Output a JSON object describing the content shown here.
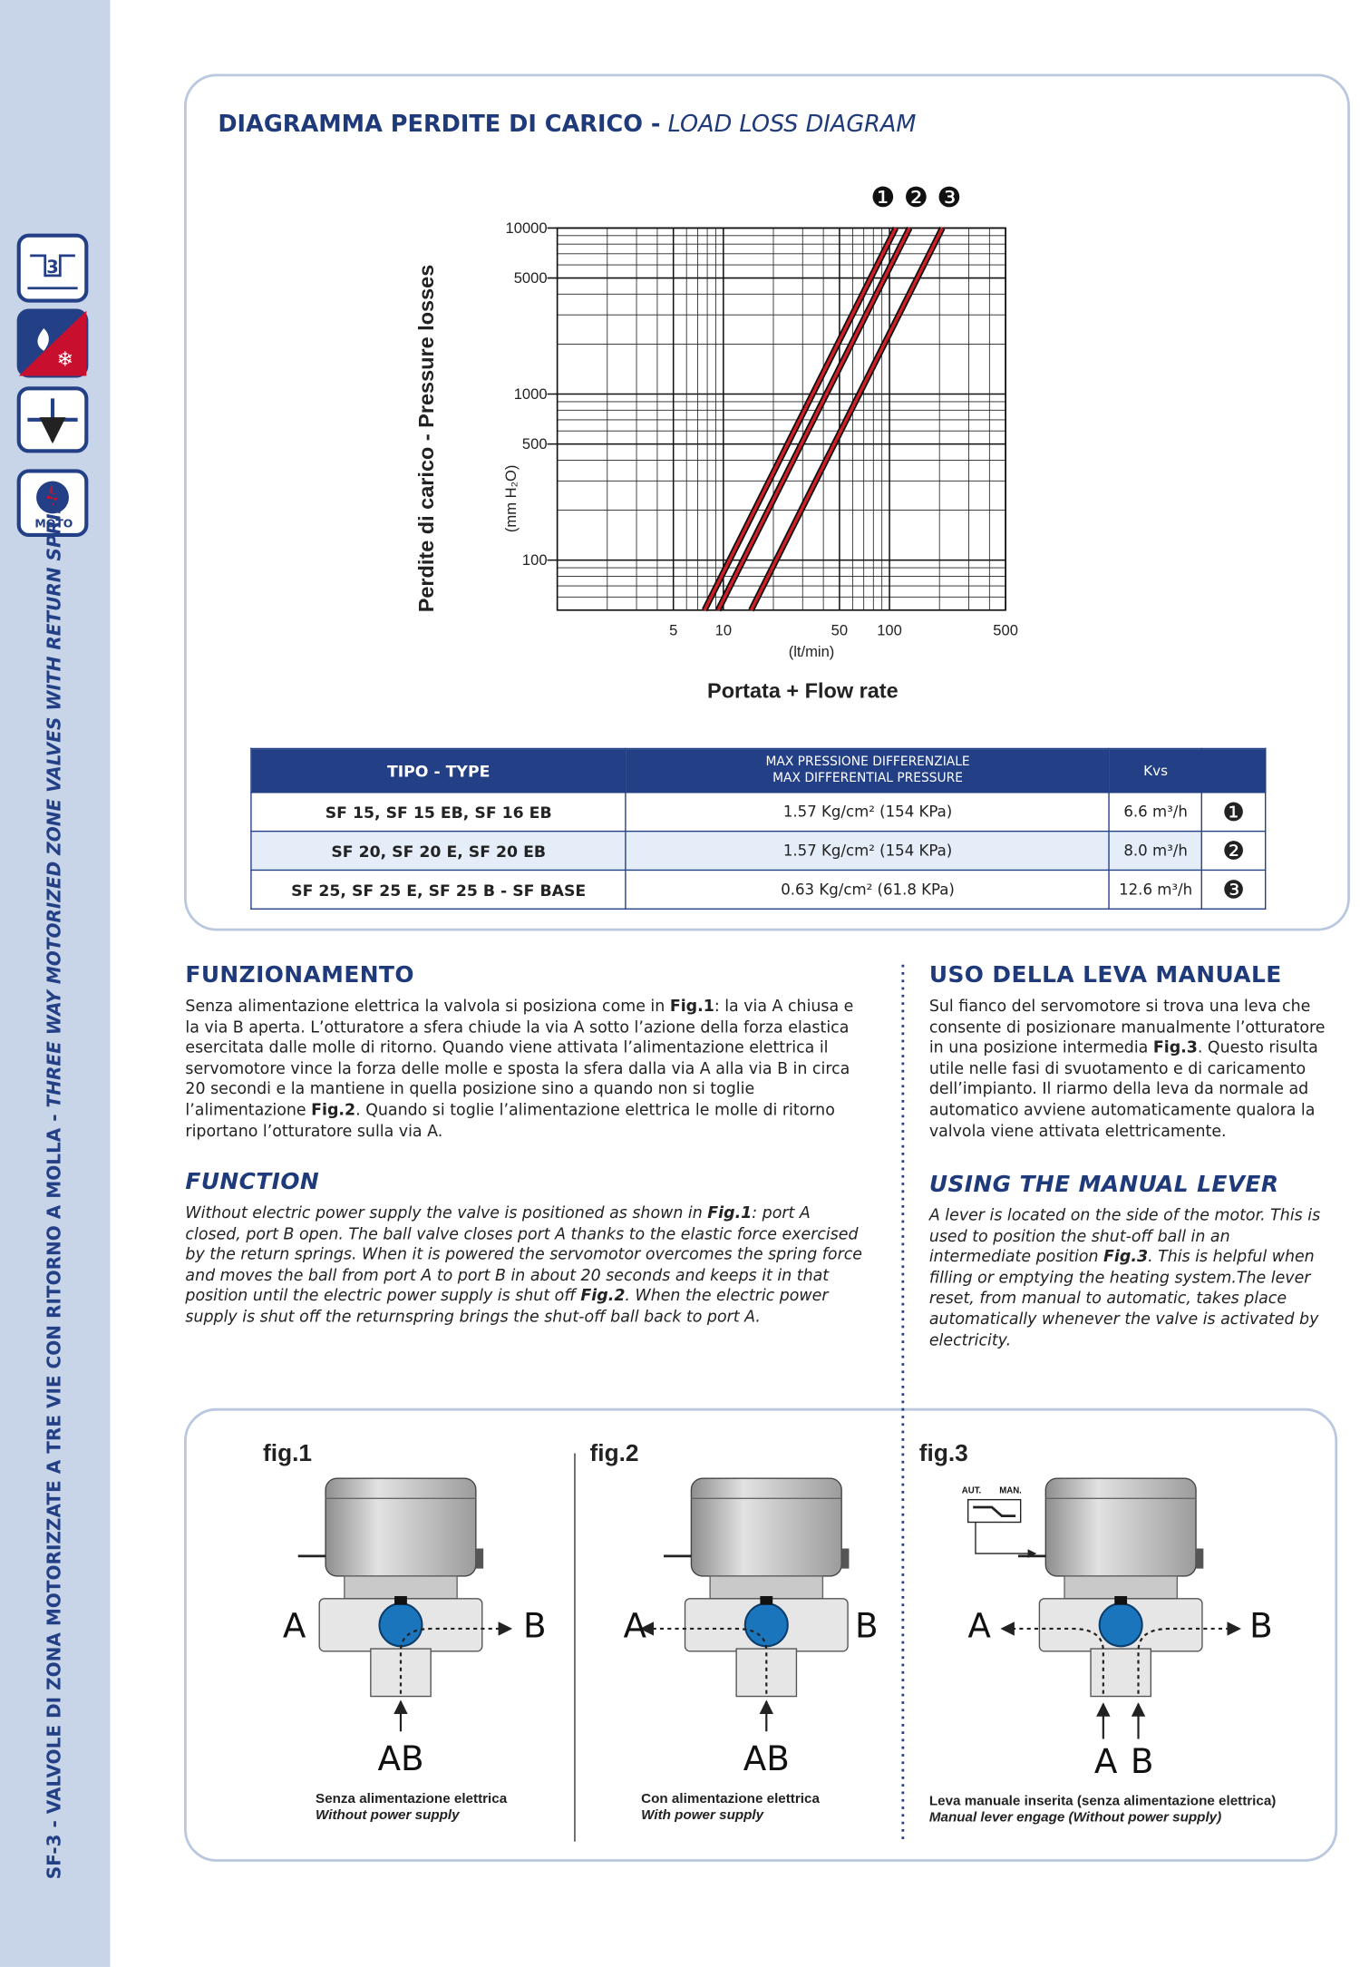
{
  "sidebar": {
    "text": "SF-3 - VALVOLE DI ZONA MOTORIZZATE A TRE VIE CON RITORNO A MOLLA -",
    "text_en": "THREE WAY MOTORIZED ZONE VALVES WITH RETURN SPRING",
    "icon_number": "3",
    "icon_label": "MOTO"
  },
  "diagram": {
    "title": "DIAGRAMMA PERDITE DI CARICO -",
    "title_en": "LOAD LOSS DIAGRAM"
  },
  "chart_data": {
    "type": "line",
    "y_label": "Perdite di carico - Pressure losses",
    "y_unit": "(mm H₂O)",
    "x_label": "Portata + Flow rate",
    "x_unit": "(lt/min)",
    "x_scale": "log",
    "y_scale": "log",
    "grid": true,
    "minor_grid": true,
    "xlim": [
      1,
      500
    ],
    "ylim": [
      50,
      10000
    ],
    "xticks": [
      5,
      10,
      50,
      100,
      500
    ],
    "yticks": [
      100,
      500,
      1000,
      5000,
      10000
    ],
    "series": [
      {
        "name": "❶",
        "color": "#d01f26",
        "x": [
          7.7,
          109
        ],
        "values": [
          50,
          10000
        ]
      },
      {
        "name": "❷",
        "color": "#d01f26",
        "x": [
          9.3,
          132
        ],
        "values": [
          50,
          10000
        ]
      },
      {
        "name": "❸",
        "color": "#d01f26",
        "x": [
          14.7,
          208
        ],
        "values": [
          50,
          10000
        ]
      }
    ]
  },
  "table": {
    "headers": [
      "TIPO - TYPE",
      "MAX PRESSIONE DIFFERENZIALE",
      "MAX DIFFERENTIAL PRESSURE",
      "Kvs"
    ],
    "rows": [
      [
        "SF 15, SF 15 EB, SF 16 EB",
        "1.57 Kg/cm² (154 KPa)",
        "6.6 m³/h",
        "❶"
      ],
      [
        "SF 20, SF 20 E, SF 20 EB",
        "1.57 Kg/cm² (154 KPa)",
        "8.0 m³/h",
        "❷"
      ],
      [
        "SF 25, SF 25 E, SF 25 B - SF BASE",
        "0.63 Kg/cm² (61.8 KPa)",
        "12.6 m³/h",
        "❸"
      ]
    ]
  },
  "sections": [
    {
      "title": "FUNZIONAMENTO",
      "body": [
        "Senza alimentazione elettrica la valvola si posiziona come in ",
        "Fig.1",
        ": la via A chiusa e la via B aperta. L’otturatore a sfera chiude la via A sotto l’azione della forza elastica esercitata dalle molle di ritorno. Quando viene attivata l’alimentazione elettrica il servomotore vince la forza delle molle e sposta la sfera dalla via A alla via B in circa 20 secondi e la mantiene in quella posizione sino a quando non si toglie l’alimentazione ",
        "Fig.2",
        ". Quando si toglie l’alimentazione elettrica le molle di ritorno riportano l’otturatore sulla via A."
      ]
    },
    {
      "title": "FUNCTION",
      "body": [
        "Without electric power supply the valve is positioned as shown in ",
        "Fig.1",
        ": port A closed, port B open. The ball valve closes port A thanks to the elastic force exercised by the return springs. When it is powered the servomotor overcomes the spring force and moves the ball from port A to port B in about 20 seconds and keeps it in that position until the electric power supply is shut off  ",
        "Fig.2",
        ". When the electric power supply is shut off the returnspring brings the shut-off ball back to port A."
      ]
    },
    {
      "title": "USO DELLA LEVA MANUALE",
      "body": [
        "Sul fianco del servomotore si trova una leva che consente di posizionare manualmente l’otturatore in una posizione intermedia ",
        "Fig.3",
        ". Questo risulta utile nelle fasi di svuotamento e di caricamento dell’impianto. Il riarmo della leva da normale ad automatico avviene automaticamente qualora la valvola viene attivata elettricamente."
      ]
    },
    {
      "title": "USING THE MANUAL LEVER",
      "body": [
        "A lever is located on the side of the motor. This is used to position the shut-off ball in an intermediate position ",
        "Fig.3",
        ". This is helpful when filling or emptying the heating system.The lever reset, from manual to automatic, takes place  automatically whenever the valve is activated by electricity."
      ]
    }
  ],
  "figures": [
    {
      "label": "fig.1",
      "port_a": "A",
      "port_b": "B",
      "port_ab": "AB",
      "caption": "Senza alimentazione elettrica",
      "caption_en": "Without power supply"
    },
    {
      "label": "fig.2",
      "port_a": "A",
      "port_b": "B",
      "port_ab": "AB",
      "caption": "Con alimentazione elettrica",
      "caption_en": "With power supply"
    },
    {
      "label": "fig.3",
      "port_a": "A",
      "port_b": "B",
      "inlet_a": "A",
      "inlet_b": "B",
      "lever_aut": "AUT.",
      "lever_man": "MAN.",
      "caption": "Leva manuale inserita (senza alimentazione elettrica)",
      "caption_en": "Manual lever engage (Without power supply)"
    }
  ]
}
